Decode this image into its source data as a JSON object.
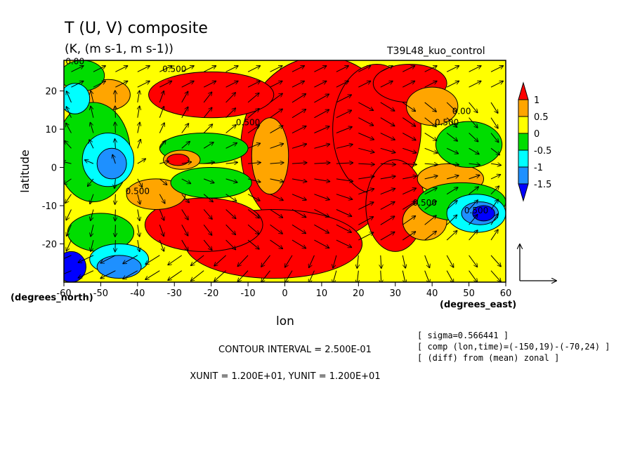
{
  "chart_data": {
    "type": "heatmap",
    "title": "T (U, V) composite",
    "subtitle": "(K, (m s-1, m s-1))",
    "run_label": "T39L48_kuo_control",
    "xlabel": "lon",
    "ylabel": "latitude",
    "x_unit_label": "(degrees_east)",
    "y_unit_label": "(degrees_north)",
    "xlim": [
      -60,
      60
    ],
    "ylim": [
      -30,
      28
    ],
    "x_ticks": [
      -60,
      -50,
      -40,
      -30,
      -20,
      -10,
      0,
      10,
      20,
      30,
      40,
      50,
      60
    ],
    "y_ticks": [
      -20,
      -10,
      0,
      10,
      20
    ],
    "colorbar": {
      "levels": [
        1,
        0.5,
        0,
        -0.5,
        -1,
        -1.5
      ],
      "colors": [
        "#ff0000",
        "#ffa500",
        "#ffff00",
        "#00dd00",
        "#00ffff",
        "#1e90ff",
        "#0000ff"
      ]
    },
    "contour_labels": [
      {
        "text": "0.500",
        "x": -30,
        "y": 25
      },
      {
        "text": "0.500",
        "x": -10,
        "y": 11
      },
      {
        "text": "0.500",
        "x": -40,
        "y": -7
      },
      {
        "text": "0.500",
        "x": 44,
        "y": 11
      },
      {
        "text": "0.00",
        "x": 48,
        "y": 14
      },
      {
        "text": "0.500",
        "x": 38,
        "y": -10
      },
      {
        "text": "0.500",
        "x": 52,
        "y": -12
      },
      {
        "text": "0.00",
        "x": -57,
        "y": 27
      }
    ],
    "contour_interval_text": "CONTOUR INTERVAL = 2.500E-01",
    "unit_vector_text": "XUNIT = 1.200E+01, YUNIT = 1.200E+01",
    "info_lines": [
      "[ sigma=0.566441 ]",
      "[ comp (lon,time)=(-150,19)-(-70,24) ]",
      "[ (diff) from (mean) zonal ]"
    ]
  }
}
